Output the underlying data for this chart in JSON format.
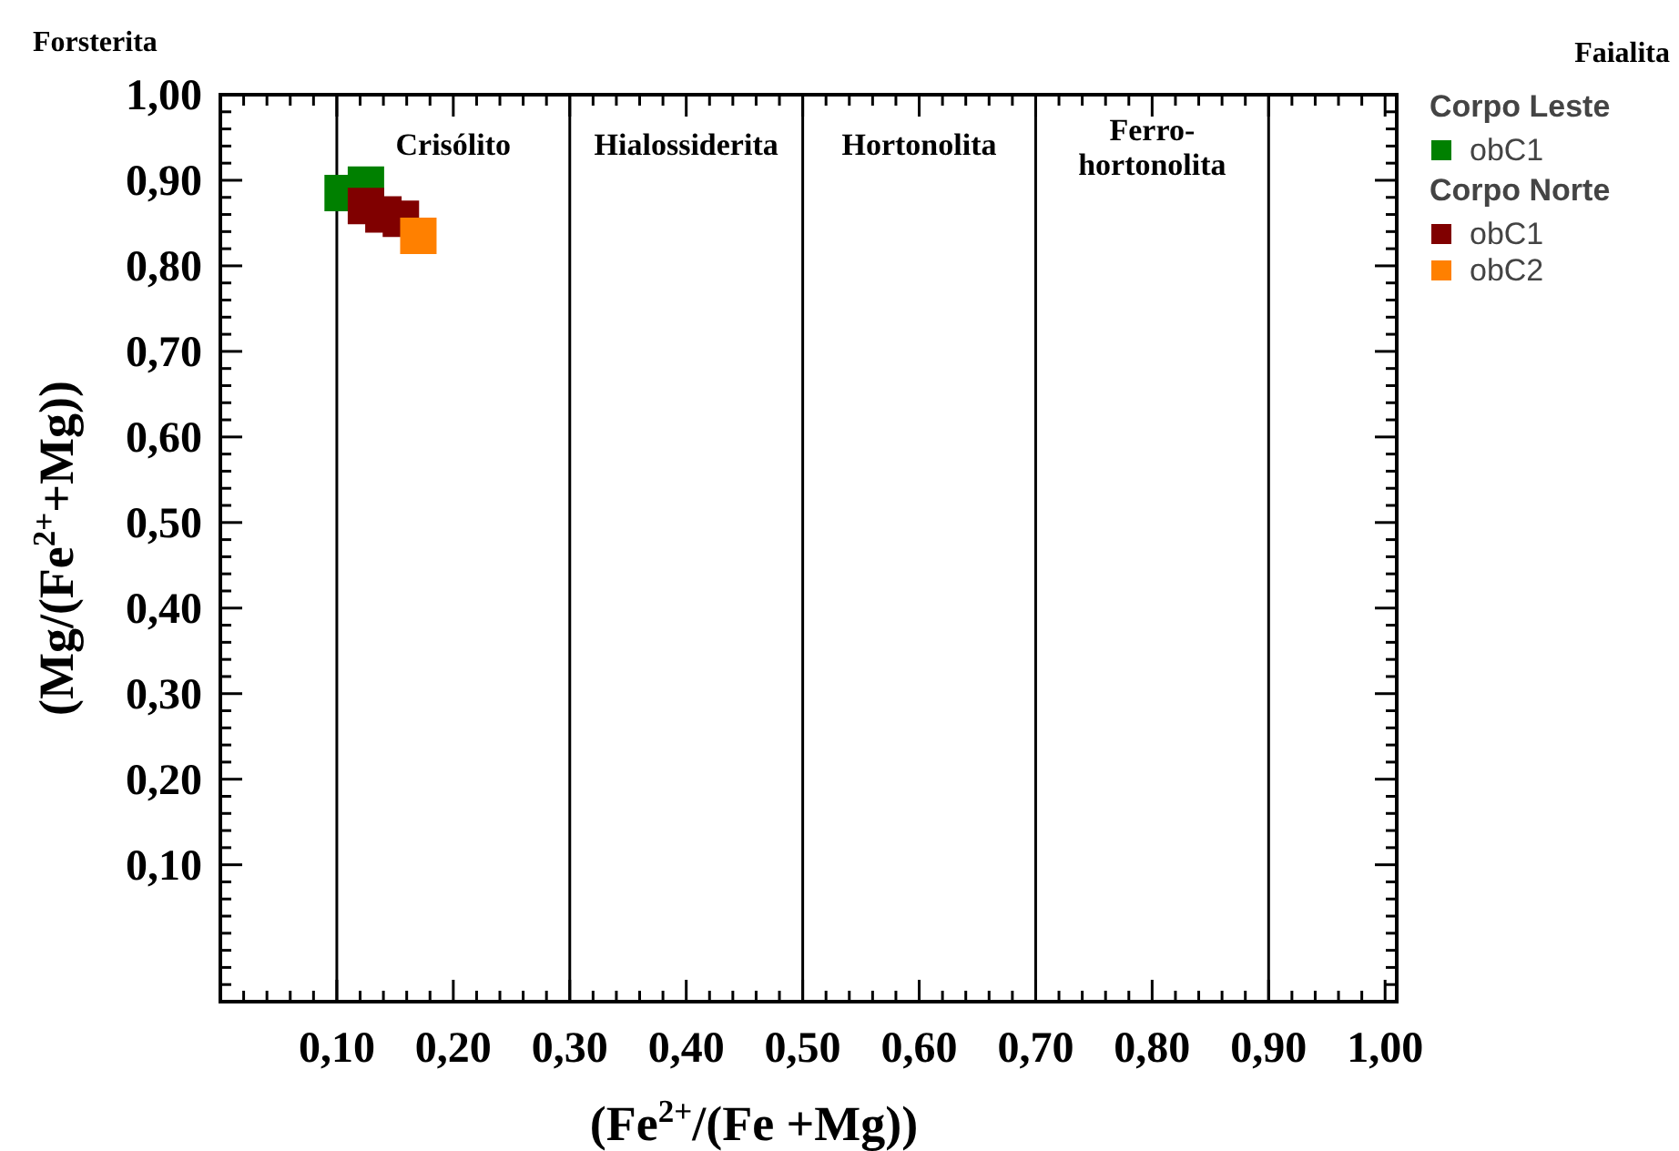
{
  "chart_data": {
    "type": "scatter",
    "xlabel": "(Fe$^{2+}$/(Fe +Mg))",
    "ylabel": "(Mg/(Fe$^{2+}$+Mg))",
    "xlim": [
      0,
      1.01
    ],
    "ylim": [
      -0.06,
      1.0
    ],
    "xticks": [
      {
        "value": 0.1,
        "label": "0,10"
      },
      {
        "value": 0.2,
        "label": "0,20"
      },
      {
        "value": 0.3,
        "label": "0,30"
      },
      {
        "value": 0.4,
        "label": "0,40"
      },
      {
        "value": 0.5,
        "label": "0,50"
      },
      {
        "value": 0.6,
        "label": "0,60"
      },
      {
        "value": 0.7,
        "label": "0,70"
      },
      {
        "value": 0.8,
        "label": "0,80"
      },
      {
        "value": 0.9,
        "label": "0,90"
      },
      {
        "value": 1.0,
        "label": "1,00"
      },
      {
        "value": 0.02,
        "label": null
      },
      {
        "value": 0.04,
        "label": null
      },
      {
        "value": 0.06,
        "label": null
      },
      {
        "value": 0.08,
        "label": null
      },
      {
        "value": 0.12,
        "label": null
      },
      {
        "value": 0.14,
        "label": null
      },
      {
        "value": 0.16,
        "label": null
      },
      {
        "value": 0.18,
        "label": null
      },
      {
        "value": 0.22,
        "label": null
      },
      {
        "value": 0.24,
        "label": null
      },
      {
        "value": 0.26,
        "label": null
      },
      {
        "value": 0.28,
        "label": null
      },
      {
        "value": 0.32,
        "label": null
      },
      {
        "value": 0.34,
        "label": null
      },
      {
        "value": 0.36,
        "label": null
      },
      {
        "value": 0.38,
        "label": null
      },
      {
        "value": 0.42,
        "label": null
      },
      {
        "value": 0.44,
        "label": null
      },
      {
        "value": 0.46,
        "label": null
      },
      {
        "value": 0.48,
        "label": null
      },
      {
        "value": 0.52,
        "label": null
      },
      {
        "value": 0.54,
        "label": null
      },
      {
        "value": 0.56,
        "label": null
      },
      {
        "value": 0.58,
        "label": null
      },
      {
        "value": 0.62,
        "label": null
      },
      {
        "value": 0.64,
        "label": null
      },
      {
        "value": 0.66,
        "label": null
      },
      {
        "value": 0.68,
        "label": null
      },
      {
        "value": 0.72,
        "label": null
      },
      {
        "value": 0.74,
        "label": null
      },
      {
        "value": 0.76,
        "label": null
      },
      {
        "value": 0.78,
        "label": null
      },
      {
        "value": 0.82,
        "label": null
      },
      {
        "value": 0.84,
        "label": null
      },
      {
        "value": 0.86,
        "label": null
      },
      {
        "value": 0.88,
        "label": null
      },
      {
        "value": 0.92,
        "label": null
      },
      {
        "value": 0.94,
        "label": null
      },
      {
        "value": 0.96,
        "label": null
      },
      {
        "value": 0.98,
        "label": null
      }
    ],
    "yticks": [
      {
        "value": 0.1,
        "label": "0,10"
      },
      {
        "value": 0.2,
        "label": "0,20"
      },
      {
        "value": 0.3,
        "label": "0,30"
      },
      {
        "value": 0.4,
        "label": "0,40"
      },
      {
        "value": 0.5,
        "label": "0,50"
      },
      {
        "value": 0.6,
        "label": "0,60"
      },
      {
        "value": 0.7,
        "label": "0,70"
      },
      {
        "value": 0.8,
        "label": "0,80"
      },
      {
        "value": 0.9,
        "label": "0,90"
      },
      {
        "value": 1.0,
        "label": "1,00"
      },
      {
        "value": -0.04,
        "label": null
      },
      {
        "value": -0.02,
        "label": null
      },
      {
        "value": 0.0,
        "label": null
      },
      {
        "value": 0.02,
        "label": null
      },
      {
        "value": 0.04,
        "label": null
      },
      {
        "value": 0.06,
        "label": null
      },
      {
        "value": 0.08,
        "label": null
      },
      {
        "value": 0.12,
        "label": null
      },
      {
        "value": 0.14,
        "label": null
      },
      {
        "value": 0.16,
        "label": null
      },
      {
        "value": 0.18,
        "label": null
      },
      {
        "value": 0.22,
        "label": null
      },
      {
        "value": 0.24,
        "label": null
      },
      {
        "value": 0.26,
        "label": null
      },
      {
        "value": 0.28,
        "label": null
      },
      {
        "value": 0.32,
        "label": null
      },
      {
        "value": 0.34,
        "label": null
      },
      {
        "value": 0.36,
        "label": null
      },
      {
        "value": 0.38,
        "label": null
      },
      {
        "value": 0.42,
        "label": null
      },
      {
        "value": 0.44,
        "label": null
      },
      {
        "value": 0.46,
        "label": null
      },
      {
        "value": 0.48,
        "label": null
      },
      {
        "value": 0.52,
        "label": null
      },
      {
        "value": 0.54,
        "label": null
      },
      {
        "value": 0.56,
        "label": null
      },
      {
        "value": 0.58,
        "label": null
      },
      {
        "value": 0.62,
        "label": null
      },
      {
        "value": 0.64,
        "label": null
      },
      {
        "value": 0.66,
        "label": null
      },
      {
        "value": 0.68,
        "label": null
      },
      {
        "value": 0.72,
        "label": null
      },
      {
        "value": 0.74,
        "label": null
      },
      {
        "value": 0.76,
        "label": null
      },
      {
        "value": 0.78,
        "label": null
      },
      {
        "value": 0.82,
        "label": null
      },
      {
        "value": 0.84,
        "label": null
      },
      {
        "value": 0.86,
        "label": null
      },
      {
        "value": 0.88,
        "label": null
      },
      {
        "value": 0.92,
        "label": null
      },
      {
        "value": 0.94,
        "label": null
      },
      {
        "value": 0.96,
        "label": null
      },
      {
        "value": 0.98,
        "label": null
      }
    ],
    "marker": "square",
    "legend": "right",
    "grid": false,
    "ref_lines": [
      {
        "axis": "x",
        "value": 0.1,
        "color": "#000000"
      },
      {
        "axis": "x",
        "value": 0.3,
        "color": "#000000"
      },
      {
        "axis": "x",
        "value": 0.5,
        "color": "#000000"
      },
      {
        "axis": "x",
        "value": 0.7,
        "color": "#000000"
      },
      {
        "axis": "x",
        "value": 0.9,
        "color": "#000000"
      }
    ],
    "annotations": [
      "Crisólito",
      "Hialossiderita",
      "Hortonolita",
      "Ferro-\nhortonolita",
      "Forsterita",
      "Faialita",
      "Corpo Leste",
      "Corpo Norte"
    ],
    "series": [
      {
        "name": "obC1",
        "color": "#008000",
        "x": [
          0.105,
          0.125
        ],
        "values": [
          0.885,
          0.895
        ]
      },
      {
        "name": "obC1",
        "color": "#800000",
        "x": [
          0.125,
          0.14,
          0.155
        ],
        "values": [
          0.87,
          0.86,
          0.855
        ]
      },
      {
        "name": "obC2",
        "color": "#ff8000",
        "x": [
          0.17
        ],
        "values": [
          0.835
        ]
      }
    ]
  }
}
